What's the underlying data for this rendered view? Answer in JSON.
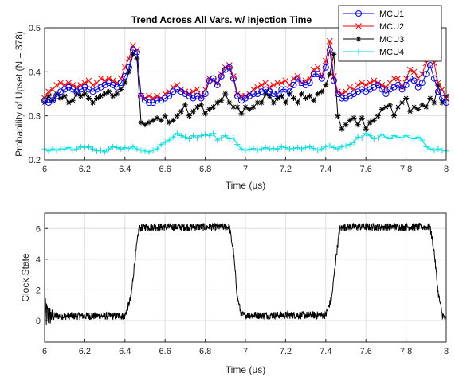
{
  "chart_data": [
    {
      "type": "line",
      "title": "Trend Across All Vars. w/ Injection Time",
      "xlabel": "Time (μs)",
      "ylabel": "Probability of Upset (N = 378)",
      "xlim": [
        6,
        8
      ],
      "ylim": [
        0.2,
        0.5
      ],
      "xticks": [
        "6",
        "6.2",
        "6.4",
        "6.6",
        "6.8",
        "7",
        "7.2",
        "7.4",
        "7.6",
        "7.8",
        "8"
      ],
      "xtick_values": [
        6,
        6.2,
        6.4,
        6.6,
        6.8,
        7,
        7.2,
        7.4,
        7.6,
        7.8,
        8
      ],
      "yticks": [
        "0.2",
        "0.3",
        "0.4",
        "0.5"
      ],
      "ytick_values": [
        0.2,
        0.3,
        0.4,
        0.5
      ],
      "grid": true,
      "legend_position": "top-right",
      "x": [
        6.0,
        6.02,
        6.04,
        6.06,
        6.08,
        6.1,
        6.12,
        6.14,
        6.16,
        6.18,
        6.2,
        6.22,
        6.24,
        6.26,
        6.28,
        6.3,
        6.32,
        6.34,
        6.36,
        6.38,
        6.4,
        6.42,
        6.44,
        6.46,
        6.48,
        6.5,
        6.52,
        6.54,
        6.56,
        6.58,
        6.6,
        6.62,
        6.64,
        6.66,
        6.68,
        6.7,
        6.72,
        6.74,
        6.76,
        6.78,
        6.8,
        6.82,
        6.84,
        6.86,
        6.88,
        6.9,
        6.92,
        6.94,
        6.96,
        6.98,
        7.0,
        7.02,
        7.04,
        7.06,
        7.08,
        7.1,
        7.12,
        7.14,
        7.16,
        7.18,
        7.2,
        7.22,
        7.24,
        7.26,
        7.28,
        7.3,
        7.32,
        7.34,
        7.36,
        7.38,
        7.4,
        7.42,
        7.44,
        7.46,
        7.48,
        7.5,
        7.52,
        7.54,
        7.56,
        7.58,
        7.6,
        7.62,
        7.64,
        7.66,
        7.68,
        7.7,
        7.72,
        7.74,
        7.76,
        7.78,
        7.8,
        7.82,
        7.84,
        7.86,
        7.88,
        7.9,
        7.92,
        7.94,
        7.96,
        7.98,
        8.0
      ],
      "series": [
        {
          "name": "MCU1",
          "color": "#0000ff",
          "marker": "circle",
          "values": [
            0.335,
            0.33,
            0.335,
            0.345,
            0.355,
            0.36,
            0.365,
            0.36,
            0.355,
            0.36,
            0.365,
            0.36,
            0.355,
            0.36,
            0.365,
            0.37,
            0.375,
            0.37,
            0.365,
            0.375,
            0.39,
            0.41,
            0.45,
            0.445,
            0.345,
            0.335,
            0.33,
            0.33,
            0.335,
            0.335,
            0.34,
            0.345,
            0.355,
            0.36,
            0.355,
            0.35,
            0.345,
            0.34,
            0.345,
            0.34,
            0.35,
            0.38,
            0.385,
            0.37,
            0.39,
            0.405,
            0.41,
            0.385,
            0.345,
            0.335,
            0.34,
            0.345,
            0.35,
            0.35,
            0.355,
            0.36,
            0.355,
            0.35,
            0.35,
            0.36,
            0.36,
            0.355,
            0.37,
            0.385,
            0.375,
            0.37,
            0.375,
            0.395,
            0.395,
            0.385,
            0.41,
            0.45,
            0.38,
            0.35,
            0.34,
            0.34,
            0.345,
            0.35,
            0.355,
            0.36,
            0.355,
            0.36,
            0.365,
            0.37,
            0.36,
            0.35,
            0.36,
            0.365,
            0.37,
            0.36,
            0.37,
            0.385,
            0.38,
            0.365,
            0.375,
            0.395,
            0.415,
            0.385,
            0.355,
            0.34,
            0.33
          ]
        },
        {
          "name": "MCU2",
          "color": "#ff0000",
          "marker": "x",
          "values": [
            0.34,
            0.355,
            0.36,
            0.37,
            0.375,
            0.37,
            0.375,
            0.37,
            0.365,
            0.37,
            0.375,
            0.38,
            0.37,
            0.375,
            0.385,
            0.38,
            0.385,
            0.38,
            0.375,
            0.385,
            0.41,
            0.43,
            0.46,
            0.45,
            0.345,
            0.34,
            0.345,
            0.34,
            0.345,
            0.34,
            0.35,
            0.355,
            0.365,
            0.37,
            0.36,
            0.355,
            0.35,
            0.355,
            0.36,
            0.345,
            0.36,
            0.385,
            0.38,
            0.375,
            0.395,
            0.41,
            0.415,
            0.39,
            0.35,
            0.345,
            0.345,
            0.35,
            0.36,
            0.365,
            0.37,
            0.375,
            0.365,
            0.37,
            0.375,
            0.375,
            0.38,
            0.37,
            0.385,
            0.39,
            0.375,
            0.38,
            0.385,
            0.405,
            0.41,
            0.39,
            0.425,
            0.47,
            0.39,
            0.355,
            0.35,
            0.355,
            0.365,
            0.36,
            0.37,
            0.375,
            0.37,
            0.375,
            0.38,
            0.375,
            0.37,
            0.365,
            0.375,
            0.385,
            0.385,
            0.365,
            0.385,
            0.405,
            0.4,
            0.385,
            0.395,
            0.42,
            0.445,
            0.42,
            0.375,
            0.36,
            0.34
          ]
        },
        {
          "name": "MCU3",
          "color": "#000000",
          "marker": "star",
          "values": [
            0.33,
            0.345,
            0.335,
            0.35,
            0.34,
            0.345,
            0.33,
            0.335,
            0.35,
            0.345,
            0.35,
            0.34,
            0.33,
            0.34,
            0.345,
            0.35,
            0.355,
            0.345,
            0.35,
            0.36,
            0.375,
            0.4,
            0.44,
            0.43,
            0.285,
            0.28,
            0.285,
            0.29,
            0.295,
            0.29,
            0.3,
            0.285,
            0.29,
            0.3,
            0.31,
            0.325,
            0.3,
            0.31,
            0.32,
            0.325,
            0.305,
            0.315,
            0.32,
            0.33,
            0.335,
            0.35,
            0.33,
            0.32,
            0.32,
            0.305,
            0.32,
            0.315,
            0.32,
            0.33,
            0.33,
            0.35,
            0.345,
            0.33,
            0.34,
            0.345,
            0.33,
            0.35,
            0.34,
            0.33,
            0.35,
            0.34,
            0.345,
            0.335,
            0.35,
            0.355,
            0.37,
            0.395,
            0.44,
            0.3,
            0.27,
            0.28,
            0.29,
            0.295,
            0.28,
            0.295,
            0.27,
            0.285,
            0.29,
            0.3,
            0.315,
            0.32,
            0.325,
            0.3,
            0.32,
            0.33,
            0.34,
            0.31,
            0.32,
            0.315,
            0.325,
            0.32,
            0.34,
            0.33,
            0.37,
            0.33,
            0.345
          ]
        },
        {
          "name": "MCU4",
          "color": "#00e0e0",
          "marker": "plus",
          "values": [
            0.225,
            0.22,
            0.225,
            0.222,
            0.225,
            0.225,
            0.228,
            0.222,
            0.225,
            0.23,
            0.228,
            0.23,
            0.225,
            0.22,
            0.222,
            0.218,
            0.225,
            0.23,
            0.228,
            0.225,
            0.228,
            0.226,
            0.23,
            0.225,
            0.222,
            0.22,
            0.218,
            0.222,
            0.225,
            0.235,
            0.24,
            0.245,
            0.252,
            0.26,
            0.255,
            0.252,
            0.248,
            0.255,
            0.25,
            0.255,
            0.258,
            0.255,
            0.26,
            0.245,
            0.25,
            0.255,
            0.248,
            0.25,
            0.235,
            0.225,
            0.222,
            0.224,
            0.226,
            0.222,
            0.225,
            0.228,
            0.225,
            0.226,
            0.224,
            0.23,
            0.228,
            0.225,
            0.226,
            0.228,
            0.225,
            0.228,
            0.23,
            0.226,
            0.222,
            0.225,
            0.23,
            0.232,
            0.228,
            0.225,
            0.23,
            0.232,
            0.235,
            0.24,
            0.252,
            0.25,
            0.26,
            0.255,
            0.248,
            0.25,
            0.258,
            0.252,
            0.248,
            0.255,
            0.252,
            0.25,
            0.255,
            0.25,
            0.248,
            0.252,
            0.245,
            0.23,
            0.225,
            0.222,
            0.225,
            0.222,
            0.22
          ]
        }
      ]
    },
    {
      "type": "line",
      "title": "",
      "xlabel": "Time (μs)",
      "ylabel": "Clock State",
      "xlim": [
        6,
        8
      ],
      "ylim": [
        -1.4,
        7
      ],
      "xticks": [
        "6",
        "6.2",
        "6.4",
        "6.6",
        "6.8",
        "7",
        "7.2",
        "7.4",
        "7.6",
        "7.8",
        "8"
      ],
      "xtick_values": [
        6,
        6.2,
        6.4,
        6.6,
        6.8,
        7,
        7.2,
        7.4,
        7.6,
        7.8,
        8
      ],
      "yticks": [
        "0",
        "2",
        "4",
        "6"
      ],
      "ytick_values": [
        0,
        2,
        4,
        6
      ],
      "grid": true,
      "series": [
        {
          "color": "#000000",
          "x": [
            6.0,
            6.03,
            6.4,
            6.43,
            6.45,
            6.47,
            6.5,
            6.92,
            6.94,
            6.96,
            6.98,
            7.4,
            7.43,
            7.45,
            7.47,
            7.5,
            7.92,
            7.94,
            7.96,
            7.98,
            8.0
          ],
          "values": [
            0.4,
            0.3,
            0.3,
            1.5,
            4.0,
            6.0,
            6.1,
            6.1,
            4.5,
            1.5,
            0.35,
            0.35,
            1.5,
            4.0,
            6.0,
            6.1,
            6.1,
            4.5,
            1.8,
            0.4,
            0.0
          ],
          "noise": [
            0.25,
            0.35
          ]
        }
      ]
    }
  ]
}
